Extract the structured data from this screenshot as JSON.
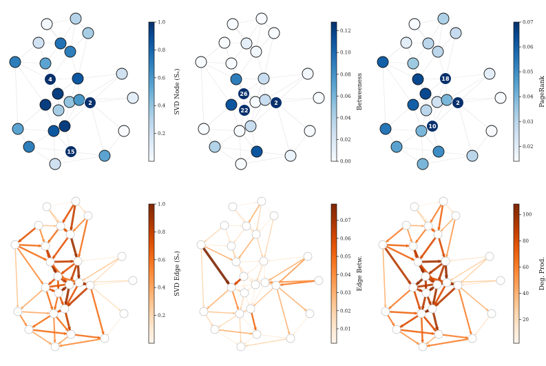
{
  "figure": {
    "node_positions": {
      "n0": [
        68,
        35
      ],
      "n1": [
        110,
        27
      ],
      "n2": [
        128,
        48
      ],
      "n3": [
        56,
        62
      ],
      "n4": [
        88,
        63
      ],
      "n5": [
        102,
        75
      ],
      "n6": [
        22,
        90
      ],
      "n7": [
        66,
        92
      ],
      "n8": [
        177,
        107
      ],
      "n9": [
        73,
        115
      ],
      "n10": [
        113,
        114
      ],
      "n11": [
        84,
        136
      ],
      "n12": [
        193,
        142
      ],
      "n13": [
        66,
        152
      ],
      "n14": [
        101,
        148
      ],
      "n15": [
        115,
        145
      ],
      "n16": [
        131,
        149
      ],
      "n17": [
        85,
        160
      ],
      "n18": [
        26,
        187
      ],
      "n19": [
        94,
        183
      ],
      "n20": [
        78,
        190
      ],
      "n21": [
        180,
        190
      ],
      "n22": [
        42,
        213
      ],
      "n23": [
        103,
        220
      ],
      "n24": [
        152,
        226
      ],
      "n25": [
        80,
        238
      ]
    },
    "edges": [
      [
        "n0",
        "n1"
      ],
      [
        "n0",
        "n5"
      ],
      [
        "n0",
        "n4"
      ],
      [
        "n1",
        "n2"
      ],
      [
        "n1",
        "n4"
      ],
      [
        "n1",
        "n5"
      ],
      [
        "n2",
        "n5"
      ],
      [
        "n2",
        "n10"
      ],
      [
        "n3",
        "n4"
      ],
      [
        "n3",
        "n6"
      ],
      [
        "n3",
        "n7"
      ],
      [
        "n4",
        "n5"
      ],
      [
        "n4",
        "n7"
      ],
      [
        "n5",
        "n10"
      ],
      [
        "n5",
        "n9"
      ],
      [
        "n6",
        "n7"
      ],
      [
        "n6",
        "n9"
      ],
      [
        "n6",
        "n13"
      ],
      [
        "n6",
        "n18"
      ],
      [
        "n7",
        "n9"
      ],
      [
        "n7",
        "n11"
      ],
      [
        "n8",
        "n10"
      ],
      [
        "n8",
        "n16"
      ],
      [
        "n8",
        "n15"
      ],
      [
        "n9",
        "n11"
      ],
      [
        "n9",
        "n14"
      ],
      [
        "n10",
        "n14"
      ],
      [
        "n10",
        "n15"
      ],
      [
        "n10",
        "n11"
      ],
      [
        "n11",
        "n13"
      ],
      [
        "n11",
        "n14"
      ],
      [
        "n11",
        "n17"
      ],
      [
        "n11",
        "n15"
      ],
      [
        "n12",
        "n16"
      ],
      [
        "n12",
        "n15"
      ],
      [
        "n13",
        "n18"
      ],
      [
        "n13",
        "n17"
      ],
      [
        "n13",
        "n20"
      ],
      [
        "n14",
        "n15"
      ],
      [
        "n14",
        "n17"
      ],
      [
        "n14",
        "n19"
      ],
      [
        "n15",
        "n16"
      ],
      [
        "n15",
        "n19"
      ],
      [
        "n16",
        "n19"
      ],
      [
        "n16",
        "n21"
      ],
      [
        "n16",
        "n24"
      ],
      [
        "n17",
        "n19"
      ],
      [
        "n17",
        "n20"
      ],
      [
        "n18",
        "n20"
      ],
      [
        "n18",
        "n22"
      ],
      [
        "n19",
        "n20"
      ],
      [
        "n19",
        "n23"
      ],
      [
        "n20",
        "n22"
      ],
      [
        "n20",
        "n23"
      ],
      [
        "n20",
        "n25"
      ],
      [
        "n21",
        "n24"
      ],
      [
        "n22",
        "n23"
      ],
      [
        "n22",
        "n25"
      ],
      [
        "n23",
        "n24"
      ],
      [
        "n23",
        "n25"
      ],
      [
        "n24",
        "n25"
      ],
      [
        "n13",
        "n15"
      ],
      [
        "n9",
        "n10"
      ]
    ]
  },
  "colors": {
    "blues": [
      "#f7fbff",
      "#deebf7",
      "#c6dbef",
      "#9ecae1",
      "#6baed6",
      "#4292c6",
      "#2171b5",
      "#08519c",
      "#08306b"
    ],
    "oranges": [
      "#fff5eb",
      "#fee6ce",
      "#fdd0a2",
      "#fdae6b",
      "#fd8d3c",
      "#f16913",
      "#d94801",
      "#a63603",
      "#7f2704"
    ],
    "node_edge": "#111111",
    "label_fill": "#08306b"
  },
  "chart_data": [
    {
      "type": "network",
      "colorbar": {
        "label": "SVD Node (Sₙ)",
        "range": [
          0.0,
          1.0
        ],
        "ticks": [
          "0.2",
          "0.4",
          "0.6",
          "0.8",
          "1.0"
        ],
        "tick_values": [
          0.2,
          0.4,
          0.6,
          0.8,
          1.0
        ],
        "cmap": "blues"
      },
      "node_values": {
        "n0": 0.03,
        "n1": 0.3,
        "n2": 0.35,
        "n3": 0.2,
        "n4": 0.75,
        "n5": 0.7,
        "n6": 0.7,
        "n7": 0.55,
        "n8": 0.2,
        "n9": 0.95,
        "n10": 0.85,
        "n11": 0.95,
        "n12": 0.1,
        "n13": 0.95,
        "n14": 0.4,
        "n15": 0.6,
        "n16": 1.0,
        "n17": 0.35,
        "n18": 0.55,
        "n19": 0.95,
        "n20": 0.85,
        "n21": 0.0,
        "n22": 0.7,
        "n23": 0.95,
        "n24": 0.55,
        "n25": 0.2
      },
      "labels": [
        {
          "node": "n9",
          "text": "4"
        },
        {
          "node": "n16",
          "text": "2"
        },
        {
          "node": "n23",
          "text": "15"
        }
      ]
    },
    {
      "type": "network",
      "colorbar": {
        "label": "Betweeness",
        "range": [
          0.0,
          0.128
        ],
        "ticks": [
          "0.00",
          "0.02",
          "0.04",
          "0.06",
          "0.08",
          "0.10",
          "0.12"
        ],
        "tick_values": [
          0.0,
          0.02,
          0.04,
          0.06,
          0.08,
          0.1,
          0.12
        ],
        "cmap": "blues"
      },
      "node_values": {
        "n0": 0.0,
        "n1": 0.0,
        "n2": 0.0,
        "n3": 0.0,
        "n4": 0.012,
        "n5": 0.004,
        "n6": 0.0,
        "n7": 0.0,
        "n8": 0.004,
        "n9": 0.09,
        "n10": 0.03,
        "n11": 0.1,
        "n12": 0.0,
        "n13": 0.11,
        "n14": 0.0,
        "n15": 0.03,
        "n16": 0.128,
        "n17": 0.1,
        "n18": 0.0,
        "n19": 0.03,
        "n20": 0.0,
        "n21": 0.0,
        "n22": 0.04,
        "n23": 0.11,
        "n24": 0.008,
        "n25": 0.0
      },
      "labels": [
        {
          "node": "n11",
          "text": "26"
        },
        {
          "node": "n16",
          "text": "2"
        },
        {
          "node": "n17",
          "text": "22"
        }
      ]
    },
    {
      "type": "network",
      "colorbar": {
        "label": "PageRank",
        "range": [
          0.014,
          0.07
        ],
        "ticks": [
          "0.02",
          "0.03",
          "0.04",
          "0.05",
          "0.06",
          "0.07"
        ],
        "tick_values": [
          0.02,
          0.03,
          0.04,
          0.05,
          0.06,
          0.07
        ],
        "cmap": "blues"
      },
      "node_values": {
        "n0": 0.014,
        "n1": 0.032,
        "n2": 0.028,
        "n3": 0.02,
        "n4": 0.03,
        "n5": 0.03,
        "n6": 0.06,
        "n7": 0.035,
        "n8": 0.02,
        "n9": 0.065,
        "n10": 0.05,
        "n11": 0.065,
        "n12": 0.014,
        "n13": 0.06,
        "n14": 0.025,
        "n15": 0.04,
        "n16": 0.07,
        "n17": 0.03,
        "n18": 0.055,
        "n19": 0.058,
        "n20": 0.04,
        "n21": 0.014,
        "n22": 0.045,
        "n23": 0.05,
        "n24": 0.03,
        "n25": 0.04
      },
      "labels": [
        {
          "node": "n10",
          "text": "18"
        },
        {
          "node": "n16",
          "text": "2"
        },
        {
          "node": "n19",
          "text": "10"
        }
      ]
    },
    {
      "type": "network",
      "colorbar": {
        "label": "SVD Edge (Sₑ)",
        "range": [
          0.0,
          1.0
        ],
        "ticks": [
          "0.2",
          "0.4",
          "0.6",
          "0.8",
          "1.0"
        ],
        "tick_values": [
          0.2,
          0.4,
          0.6,
          0.8,
          1.0
        ],
        "cmap": "oranges"
      },
      "edge_values": [
        0.05,
        0.2,
        0.3,
        0.2,
        0.7,
        0.8,
        0.5,
        0.6,
        0.3,
        0.7,
        0.5,
        0.7,
        0.6,
        0.9,
        0.7,
        0.6,
        0.6,
        0.5,
        0.3,
        0.7,
        0.8,
        0.1,
        0.2,
        0.3,
        0.9,
        0.6,
        0.8,
        0.9,
        0.7,
        0.7,
        0.8,
        0.7,
        0.6,
        0.1,
        0.2,
        0.4,
        0.7,
        0.6,
        0.8,
        0.9,
        0.9,
        0.9,
        0.7,
        0.8,
        0.2,
        0.6,
        0.7,
        0.6,
        0.4,
        0.5,
        0.7,
        0.8,
        0.6,
        0.6,
        0.5,
        0.1,
        0.6,
        0.4,
        0.6,
        0.4,
        0.5,
        0.7,
        0.8
      ]
    },
    {
      "type": "network",
      "colorbar": {
        "label": "Edge Betw.",
        "range": [
          0.002,
          0.079
        ],
        "ticks": [
          "0.01",
          "0.02",
          "0.03",
          "0.04",
          "0.05",
          "0.06",
          "0.07"
        ],
        "tick_values": [
          0.01,
          0.02,
          0.03,
          0.04,
          0.05,
          0.06,
          0.07
        ],
        "cmap": "oranges"
      },
      "edge_values": [
        0.008,
        0.015,
        0.01,
        0.004,
        0.03,
        0.02,
        0.01,
        0.02,
        0.01,
        0.02,
        0.015,
        0.01,
        0.015,
        0.02,
        0.03,
        0.01,
        0.03,
        0.079,
        0.02,
        0.015,
        0.02,
        0.01,
        0.035,
        0.03,
        0.01,
        0.01,
        0.02,
        0.01,
        0.01,
        0.06,
        0.01,
        0.01,
        0.01,
        0.045,
        0.04,
        0.03,
        0.02,
        0.04,
        0.01,
        0.01,
        0.01,
        0.02,
        0.01,
        0.025,
        0.03,
        0.03,
        0.01,
        0.02,
        0.025,
        0.02,
        0.02,
        0.05,
        0.02,
        0.01,
        0.02,
        0.01,
        0.03,
        0.01,
        0.01,
        0.01,
        0.02,
        0.01,
        0.01
      ]
    },
    {
      "type": "network",
      "colorbar": {
        "label": "Deg. Prod.",
        "range": [
          2,
          108
        ],
        "ticks": [
          "20",
          "40",
          "60",
          "80",
          "100"
        ],
        "tick_values": [
          20,
          40,
          60,
          80,
          100
        ],
        "cmap": "oranges"
      },
      "edge_values": [
        10,
        20,
        30,
        20,
        60,
        70,
        40,
        50,
        40,
        60,
        50,
        70,
        60,
        80,
        80,
        70,
        70,
        90,
        40,
        80,
        90,
        20,
        30,
        30,
        100,
        80,
        90,
        100,
        90,
        100,
        90,
        90,
        80,
        20,
        30,
        60,
        90,
        80,
        90,
        100,
        95,
        100,
        80,
        90,
        40,
        60,
        90,
        90,
        70,
        60,
        100,
        95,
        80,
        80,
        70,
        20,
        70,
        50,
        60,
        40,
        60,
        90,
        95
      ]
    }
  ]
}
